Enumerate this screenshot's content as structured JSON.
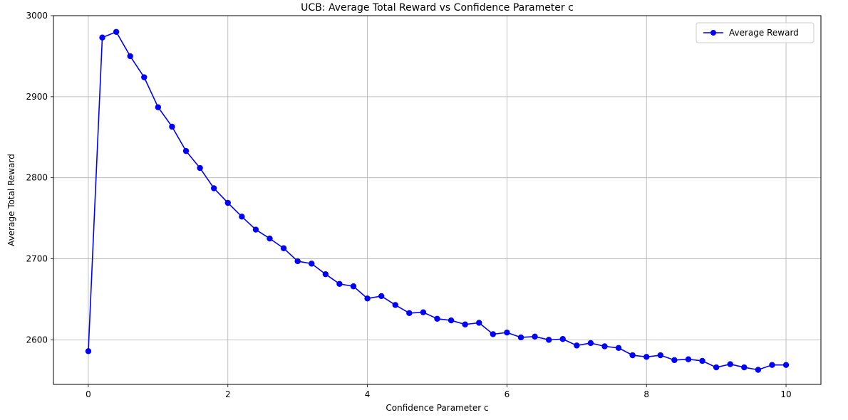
{
  "chart_data": {
    "type": "line",
    "title": "UCB: Average Total Reward vs Confidence Parameter c",
    "xlabel": "Confidence Parameter c",
    "ylabel": "Average Total Reward",
    "xlim": [
      -0.5,
      10.5
    ],
    "ylim": [
      2545,
      3000
    ],
    "xticks": [
      0,
      2,
      4,
      6,
      8,
      10
    ],
    "yticks": [
      2600,
      2700,
      2800,
      2900,
      3000
    ],
    "xtick_labels": [
      "0",
      "2",
      "4",
      "6",
      "8",
      "10"
    ],
    "ytick_labels": [
      "2600",
      "2700",
      "2800",
      "2900",
      "3000"
    ],
    "grid": true,
    "legend_position": "top-right",
    "series": [
      {
        "name": "Average Reward",
        "color": "#0000ff",
        "marker": "circle",
        "x": [
          0,
          0.2,
          0.4,
          0.6,
          0.8,
          1.0,
          1.2,
          1.4,
          1.6,
          1.8,
          2.0,
          2.2,
          2.4,
          2.6,
          2.8,
          3.0,
          3.2,
          3.4,
          3.6,
          3.8,
          4.0,
          4.2,
          4.4,
          4.6,
          4.8,
          5.0,
          5.2,
          5.4,
          5.6,
          5.8,
          6.0,
          6.2,
          6.4,
          6.6,
          6.8,
          7.0,
          7.2,
          7.4,
          7.6,
          7.8,
          8.0,
          8.2,
          8.4,
          8.6,
          8.8,
          9.0,
          9.2,
          9.4,
          9.6,
          9.8,
          10.0
        ],
        "y": [
          2586,
          2973,
          2980,
          2950,
          2924,
          2887,
          2863,
          2833,
          2812,
          2787,
          2769,
          2752,
          2736,
          2725,
          2713,
          2697,
          2694,
          2681,
          2669,
          2666,
          2651,
          2654,
          2643,
          2633,
          2634,
          2626,
          2624,
          2619,
          2621,
          2607,
          2609,
          2603,
          2604,
          2600,
          2601,
          2593,
          2596,
          2592,
          2590,
          2581,
          2579,
          2581,
          2575,
          2576,
          2574,
          2566,
          2570,
          2566,
          2563,
          2569,
          2569
        ]
      }
    ]
  }
}
